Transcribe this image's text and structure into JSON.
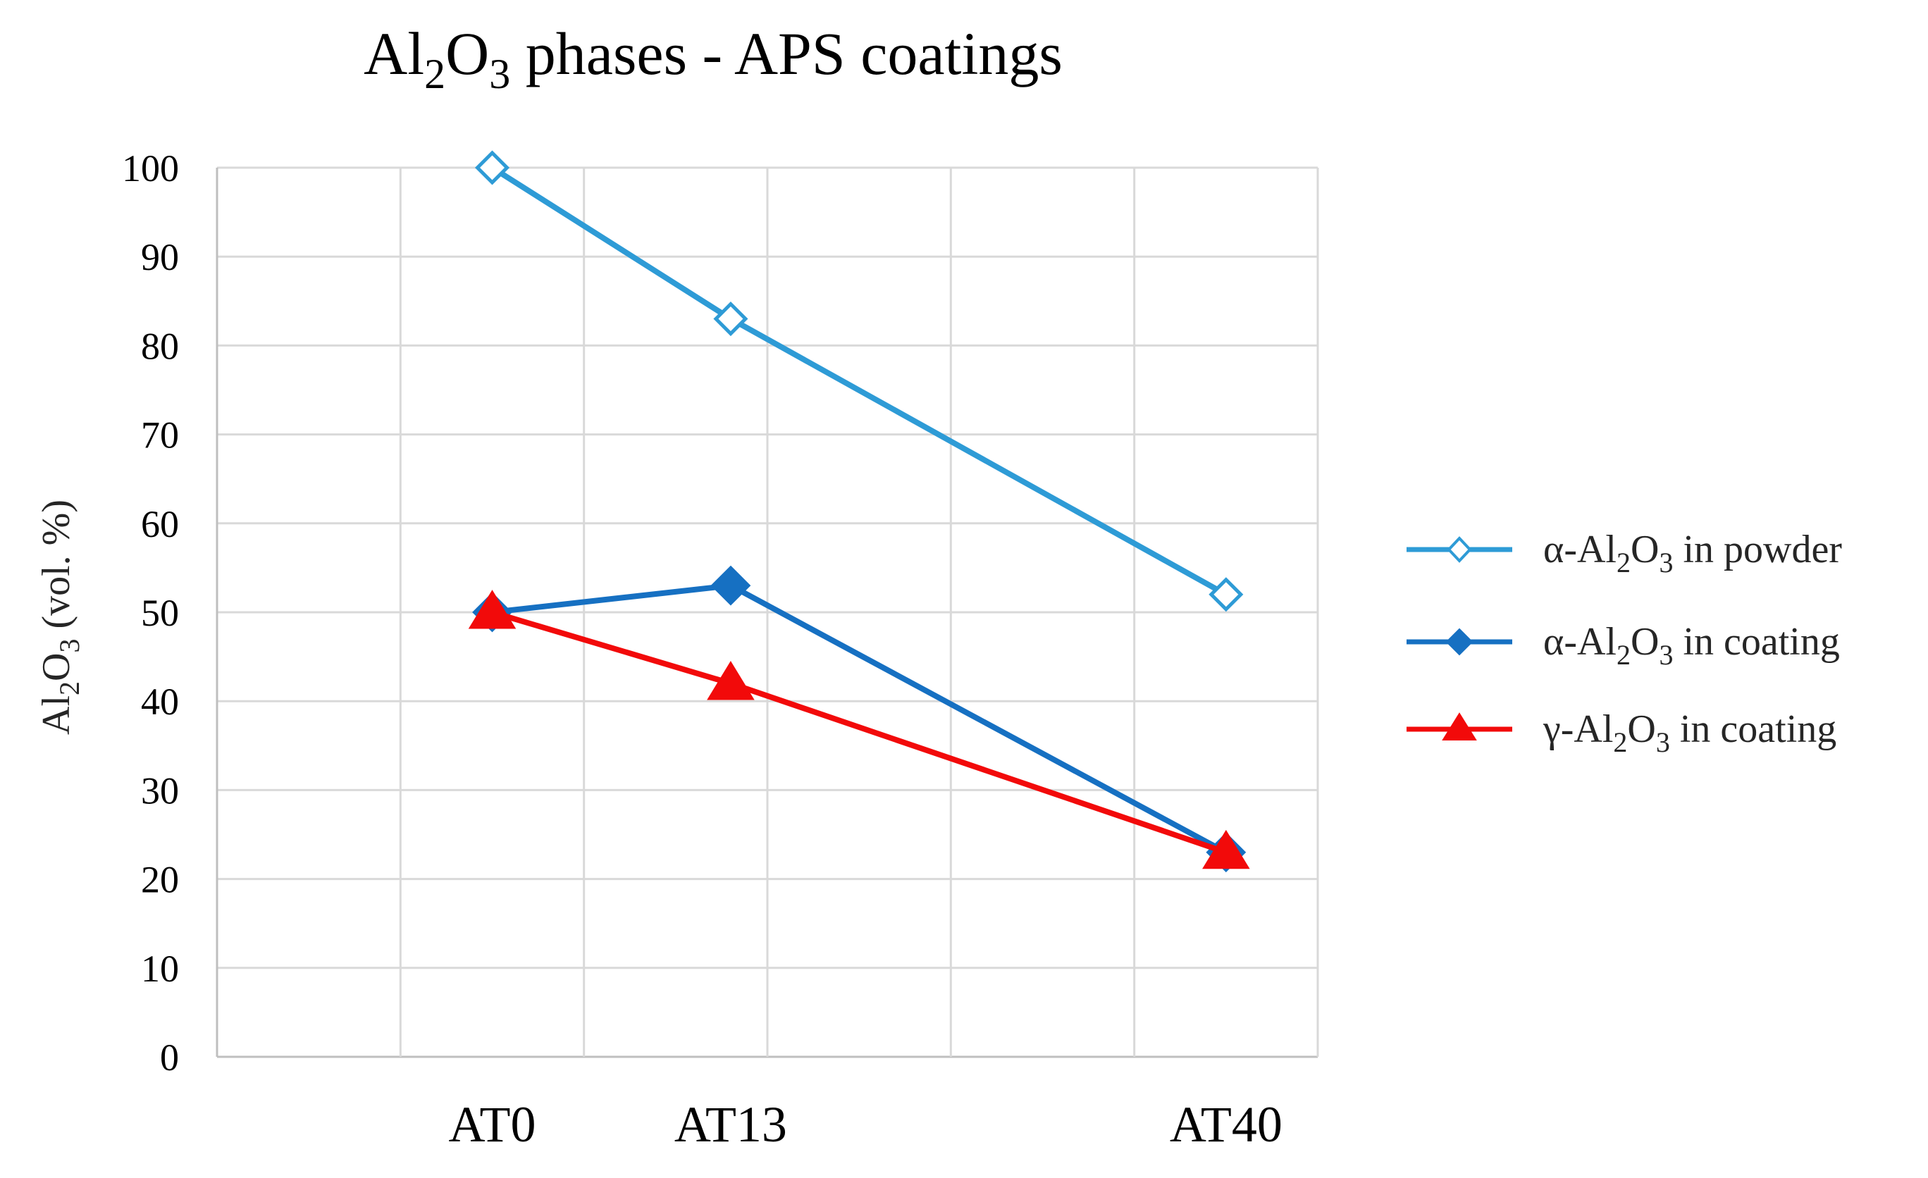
{
  "chart_data": {
    "type": "line",
    "title_parts": {
      "base": "Al",
      "sub1": "2",
      "mid": "O",
      "sub2": "3",
      "rest": " phases - APS coatings"
    },
    "ylabel_parts": {
      "base": "Al",
      "sub1": "2",
      "mid": "O",
      "sub2": "3",
      "rest": " (vol. %)"
    },
    "xlabel": "",
    "ylim": [
      0,
      100
    ],
    "yticks": [
      "0",
      "10",
      "20",
      "30",
      "40",
      "50",
      "60",
      "70",
      "80",
      "90",
      "100"
    ],
    "xlim": [
      0,
      6
    ],
    "x_grid_positions": [
      0,
      1,
      2,
      3,
      4,
      5,
      6
    ],
    "categories": [
      {
        "label": "AT0",
        "x": 1.5
      },
      {
        "label": "AT13",
        "x": 2.8
      },
      {
        "label": "AT40",
        "x": 5.5
      }
    ],
    "grid": true,
    "legend_position": "right",
    "series": [
      {
        "name": "α-Al2O3 in powder",
        "legend_parts": {
          "prefix": "α-Al",
          "sub1": "2",
          "mid": "O",
          "sub2": "3",
          "rest": " in powder"
        },
        "values": [
          100,
          83,
          52
        ],
        "color": "#2E9BD6",
        "marker": "diamond-open"
      },
      {
        "name": "α-Al2O3 in coating",
        "legend_parts": {
          "prefix": "α-Al",
          "sub1": "2",
          "mid": "O",
          "sub2": "3",
          "rest": " in coating"
        },
        "values": [
          50,
          53,
          23
        ],
        "color": "#1670C2",
        "marker": "diamond-filled"
      },
      {
        "name": "γ-Al2O3 in coating",
        "legend_parts": {
          "prefix": "γ-Al",
          "sub1": "2",
          "mid": "O",
          "sub2": "3",
          "rest": " in coating"
        },
        "values": [
          50,
          42,
          23
        ],
        "color": "#F20A0A",
        "marker": "triangle-filled"
      }
    ],
    "colors": {
      "grid": "#d9d9d9",
      "axis": "#bfbfbf",
      "text": "#000000",
      "tick_text": "#595959"
    }
  }
}
